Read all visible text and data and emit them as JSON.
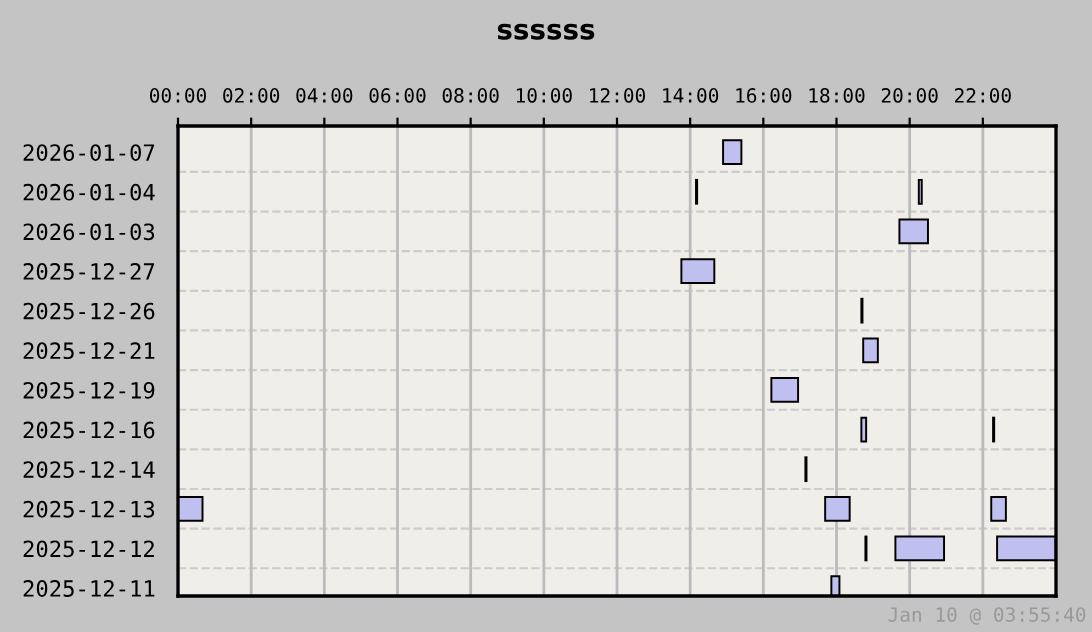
{
  "chart_data": {
    "type": "bar",
    "orientation": "horizontal",
    "title": "ssssss",
    "categories": [
      "2026-01-07",
      "2026-01-04",
      "2026-01-03",
      "2025-12-27",
      "2025-12-26",
      "2025-12-21",
      "2025-12-19",
      "2025-12-16",
      "2025-12-14",
      "2025-12-13",
      "2025-12-12",
      "2025-12-11"
    ],
    "series": [
      {
        "color": "#c0c0f0",
        "colors": [
          "#c0c0f0",
          "#000000",
          "#c0c0f0",
          "#c0c0f0",
          "#000000",
          "#c0c0f0",
          "#c0c0f0",
          "#c0c0f0",
          "#000000",
          "#c0c0f0",
          "#000000",
          "#c0c0f0"
        ],
        "base": [
          14.9,
          14.16,
          19.72,
          13.76,
          18.68,
          18.73,
          16.22,
          18.68,
          17.15,
          0,
          18.79,
          17.86
        ],
        "values": [
          0.5,
          0.03,
          0.78,
          0.9,
          0.03,
          0.4,
          0.73,
          0.13,
          0.03,
          0.67,
          0.03,
          0.22
        ]
      },
      {
        "color": "#c0c0f0",
        "base": [
          null,
          20.25,
          null,
          null,
          null,
          null,
          null,
          22.28,
          null,
          17.69,
          19.61,
          null
        ],
        "values": [
          null,
          0.08,
          null,
          null,
          null,
          null,
          null,
          0.03,
          null,
          0.67,
          1.33,
          null
        ]
      },
      {
        "color": "#c0c0f0",
        "base": [
          null,
          null,
          null,
          null,
          null,
          null,
          null,
          null,
          null,
          22.23,
          22.39,
          null
        ],
        "values": [
          null,
          null,
          null,
          null,
          null,
          null,
          null,
          null,
          null,
          0.4,
          1.6,
          null
        ]
      }
    ],
    "xlim": [
      0,
      24
    ],
    "xticks": [
      {
        "value": 0,
        "label": "00:00"
      },
      {
        "value": 2,
        "label": "02:00"
      },
      {
        "value": 4,
        "label": "04:00"
      },
      {
        "value": 6,
        "label": "06:00"
      },
      {
        "value": 8,
        "label": "08:00"
      },
      {
        "value": 10,
        "label": "10:00"
      },
      {
        "value": 12,
        "label": "12:00"
      },
      {
        "value": 14,
        "label": "14:00"
      },
      {
        "value": 16,
        "label": "16:00"
      },
      {
        "value": 18,
        "label": "18:00"
      },
      {
        "value": 20,
        "label": "20:00"
      },
      {
        "value": 22,
        "label": "22:00"
      }
    ],
    "grid": "x",
    "annotations": [
      "Jan 10 @ 03:55:40"
    ]
  }
}
